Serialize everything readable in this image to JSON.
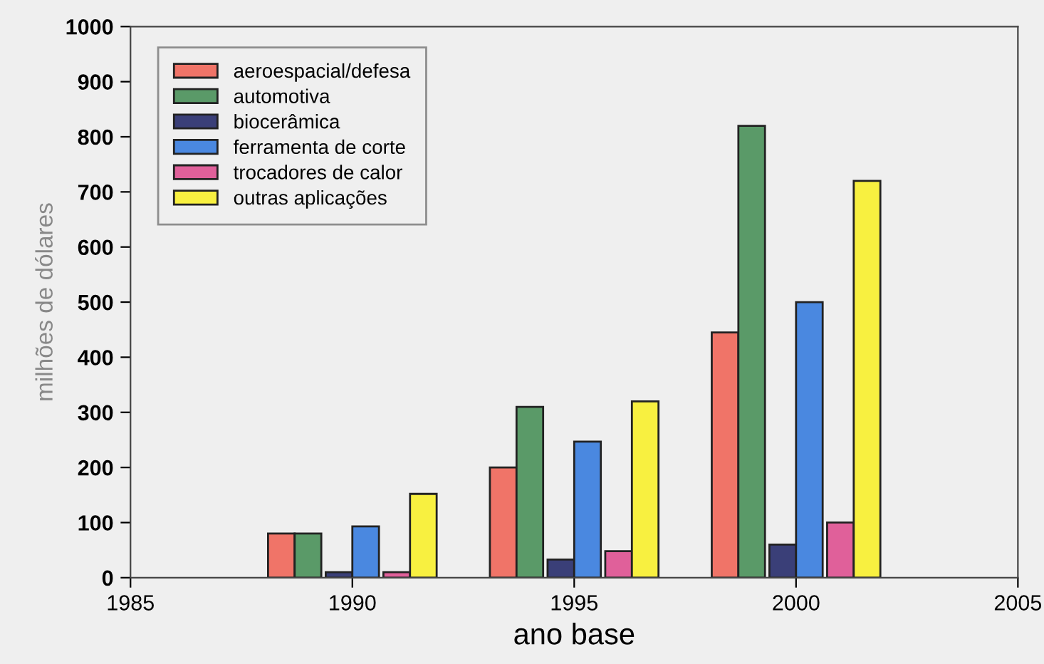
{
  "chart_data": {
    "type": "bar",
    "xlabel": "ano base",
    "ylabel": "milhões de dólares",
    "xlim": [
      1985,
      2005
    ],
    "xticks": [
      1985,
      1990,
      1995,
      2000,
      2005
    ],
    "ylim": [
      0,
      1000
    ],
    "yticks": [
      0,
      100,
      200,
      300,
      400,
      500,
      600,
      700,
      800,
      900,
      1000
    ],
    "grid": false,
    "legend": "top left",
    "series": [
      {
        "name": "aeroespacial/defesa",
        "color": "#f07468",
        "x": [
          1988.4,
          1993.4,
          1998.4
        ],
        "values": [
          80,
          200,
          445
        ]
      },
      {
        "name": "automotiva",
        "color": "#5a9a68",
        "x": [
          1989.0,
          1994.0,
          1999.0
        ],
        "values": [
          80,
          310,
          820
        ]
      },
      {
        "name": "biocerâmica",
        "color": "#3a3f78",
        "x": [
          1989.7,
          1994.7,
          1999.7
        ],
        "values": [
          10,
          33,
          60
        ]
      },
      {
        "name": "ferramenta de corte",
        "color": "#4a88e0",
        "x": [
          1990.3,
          1995.3,
          2000.3
        ],
        "values": [
          93,
          247,
          500
        ]
      },
      {
        "name": "trocadores de calor",
        "color": "#e0609a",
        "x": [
          1991.0,
          1996.0,
          2001.0
        ],
        "values": [
          10,
          48,
          100
        ]
      },
      {
        "name": "outras aplicações",
        "color": "#f8f040",
        "x": [
          1991.6,
          1996.6,
          2001.6
        ],
        "values": [
          152,
          320,
          720
        ]
      }
    ]
  }
}
